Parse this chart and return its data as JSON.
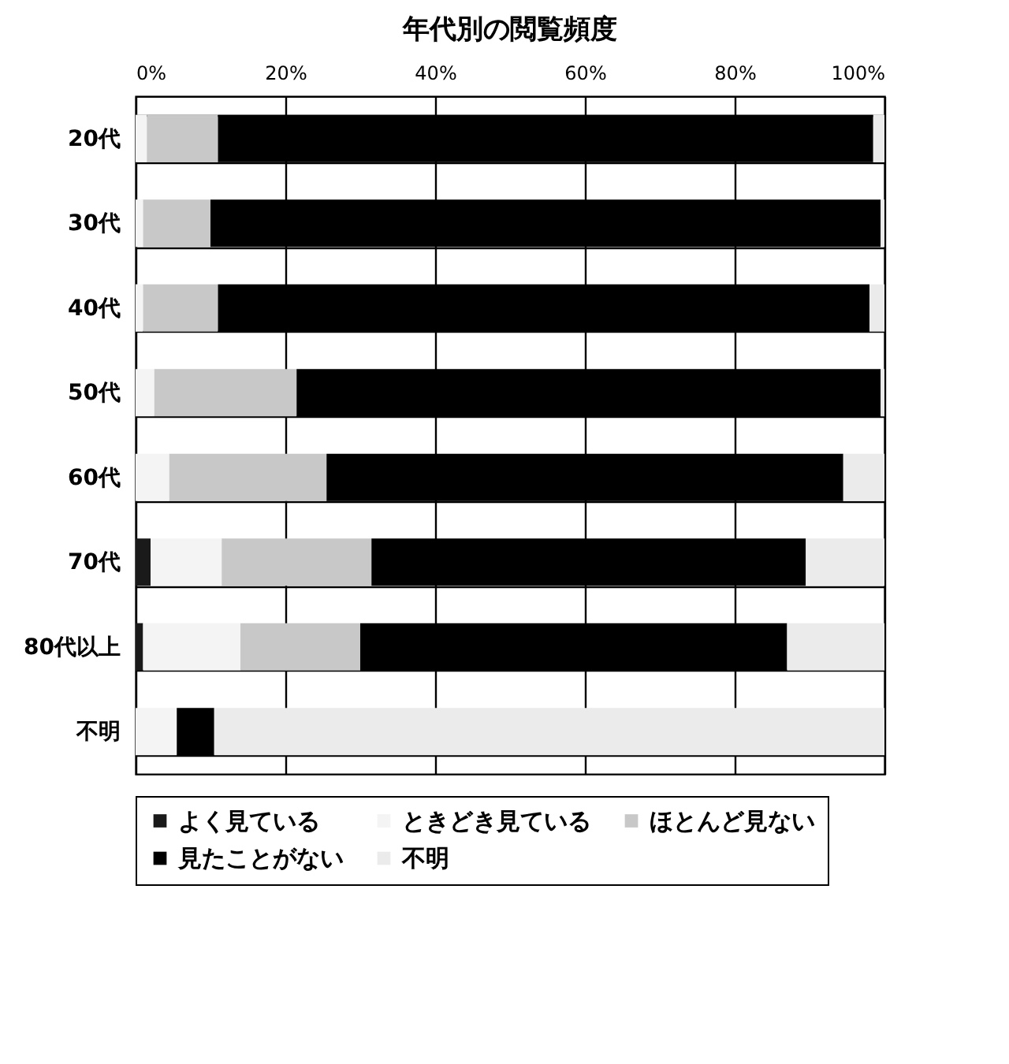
{
  "chart_data": {
    "type": "bar",
    "orientation": "horizontal",
    "stacked": true,
    "title": "年代別の閲覧頻度",
    "categories": [
      "20代",
      "30代",
      "40代",
      "50代",
      "60代",
      "70代",
      "80代以上",
      "不明"
    ],
    "series": [
      {
        "name": "よく見ている",
        "color": "#1a1a1a",
        "values": [
          0,
          0,
          0,
          0,
          0,
          2,
          1,
          0
        ]
      },
      {
        "name": "ときどき見ている",
        "color": "#f4f4f4",
        "values": [
          1.5,
          1,
          1,
          2.5,
          4.5,
          9.5,
          13,
          5.5
        ]
      },
      {
        "name": "ほとんど見ない",
        "color": "#c8c8c8",
        "values": [
          9.5,
          9,
          10,
          19,
          21,
          20,
          16,
          0
        ]
      },
      {
        "name": "見たことがない",
        "color": "#000000",
        "values": [
          87.5,
          89.5,
          87,
          78,
          69,
          58,
          57,
          5
        ]
      },
      {
        "name": "不明",
        "color": "#ebebeb",
        "values": [
          1.5,
          0.5,
          2,
          0.5,
          5.5,
          10.5,
          13,
          89.5
        ]
      }
    ],
    "xlim": [
      0,
      100
    ],
    "xticks": [
      {
        "value": 0,
        "label": "0%"
      },
      {
        "value": 20,
        "label": "20%"
      },
      {
        "value": 40,
        "label": "40%"
      },
      {
        "value": 60,
        "label": "60%"
      },
      {
        "value": 80,
        "label": "80%"
      },
      {
        "value": 100,
        "label": "100%"
      }
    ],
    "grid": true,
    "legend": "bottom"
  }
}
